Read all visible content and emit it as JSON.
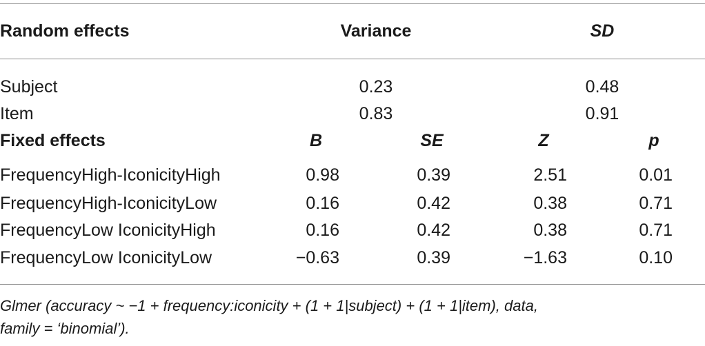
{
  "random_effects": {
    "headers": {
      "label": "Random effects",
      "variance": "Variance",
      "sd": "SD"
    },
    "rows": [
      {
        "name": "Subject",
        "variance": "0.23",
        "sd": "0.48"
      },
      {
        "name": "Item",
        "variance": "0.83",
        "sd": "0.91"
      }
    ]
  },
  "fixed_effects": {
    "headers": {
      "label": "Fixed effects",
      "b": "B",
      "se": "SE",
      "z": "Z",
      "p": "p"
    },
    "rows": [
      {
        "name": "FrequencyHigh-IconicityHigh",
        "b": "0.98",
        "se": "0.39",
        "z": "2.51",
        "p": "0.01"
      },
      {
        "name": "FrequencyHigh-IconicityLow",
        "b": "0.16",
        "se": "0.42",
        "z": "0.38",
        "p": "0.71"
      },
      {
        "name": "FrequencyLow IconicityHigh",
        "b": "0.16",
        "se": "0.42",
        "z": "0.38",
        "p": "0.71"
      },
      {
        "name": "FrequencyLow IconicityLow",
        "b": "−0.63",
        "se": "0.39",
        "z": "−1.63",
        "p": "0.10"
      }
    ]
  },
  "footnote": {
    "line1": "Glmer (accuracy ~ −1 + frequency:iconicity + (1 + 1|subject) + (1 + 1|item), data,",
    "line2": "family = ‘binomial’)."
  }
}
